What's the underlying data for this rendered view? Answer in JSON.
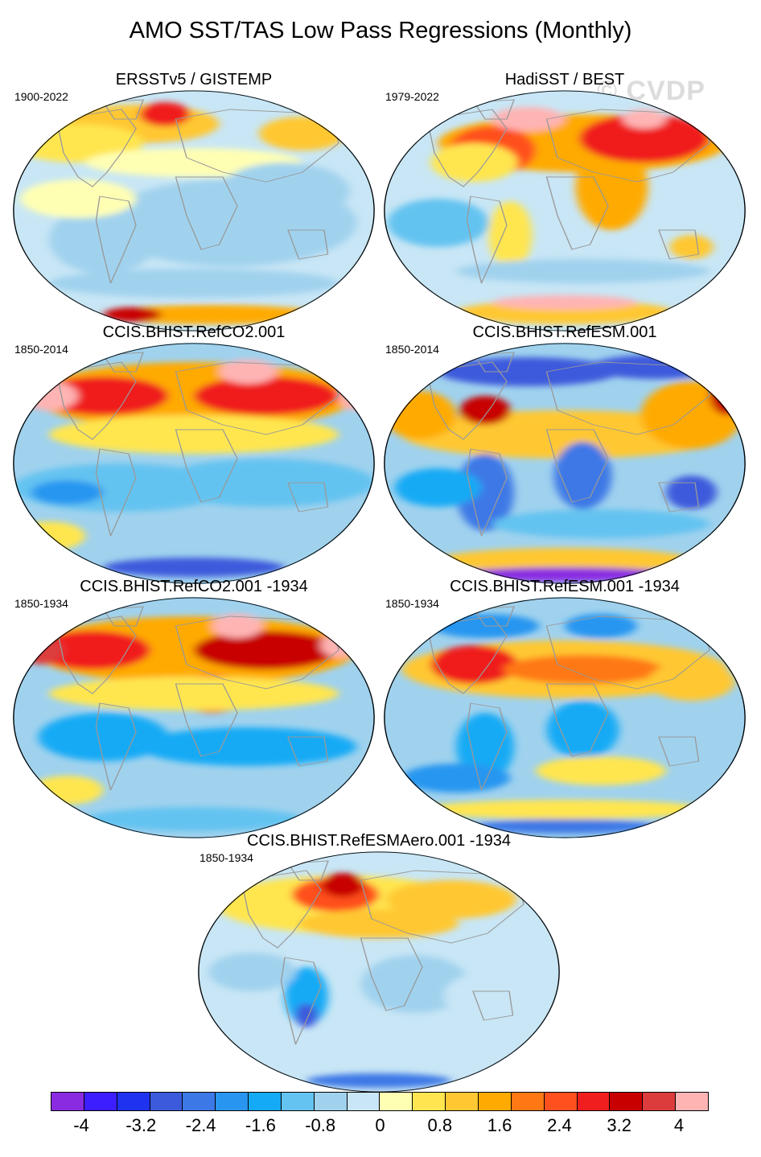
{
  "title": "AMO SST/TAS Low Pass Regressions (Monthly)",
  "watermark": "© CVDP",
  "panels": [
    {
      "title": "ERSSTv5 / GISTEMP",
      "years": "1900-2022",
      "pattern": "obs1"
    },
    {
      "title": "HadiSST / BEST",
      "years": "1979-2022",
      "pattern": "obs2"
    },
    {
      "title": "CCIS.BHIST.RefCO2.001",
      "years": "1850-2014",
      "pattern": "co2"
    },
    {
      "title": "CCIS.BHIST.RefESM.001",
      "years": "1850-2014",
      "pattern": "esm"
    },
    {
      "title": "CCIS.BHIST.RefCO2.001 -1934",
      "years": "1850-1934",
      "pattern": "co2b"
    },
    {
      "title": "CCIS.BHIST.RefESM.001 -1934",
      "years": "1850-1934",
      "pattern": "esmb"
    },
    {
      "title": "CCIS.BHIST.RefESMAero.001 -1934",
      "years": "1850-1934",
      "pattern": "aero"
    }
  ],
  "colorbar": {
    "colors": [
      "#8a2be2",
      "#3c1eff",
      "#1e32f0",
      "#3c5adc",
      "#3c78e6",
      "#2896f0",
      "#14aaf5",
      "#64c3f0",
      "#a0d2ee",
      "#c8e6f5",
      "#ffffb4",
      "#ffe650",
      "#ffc832",
      "#ffaa00",
      "#ff7814",
      "#ff501e",
      "#f01e1e",
      "#c80000",
      "#dc3c3c",
      "#ffb4b4"
    ],
    "labels": [
      "-4",
      "-3.2",
      "-2.4",
      "-1.6",
      "-0.8",
      "0",
      "0.8",
      "1.6",
      "2.4",
      "3.2",
      "4"
    ]
  }
}
